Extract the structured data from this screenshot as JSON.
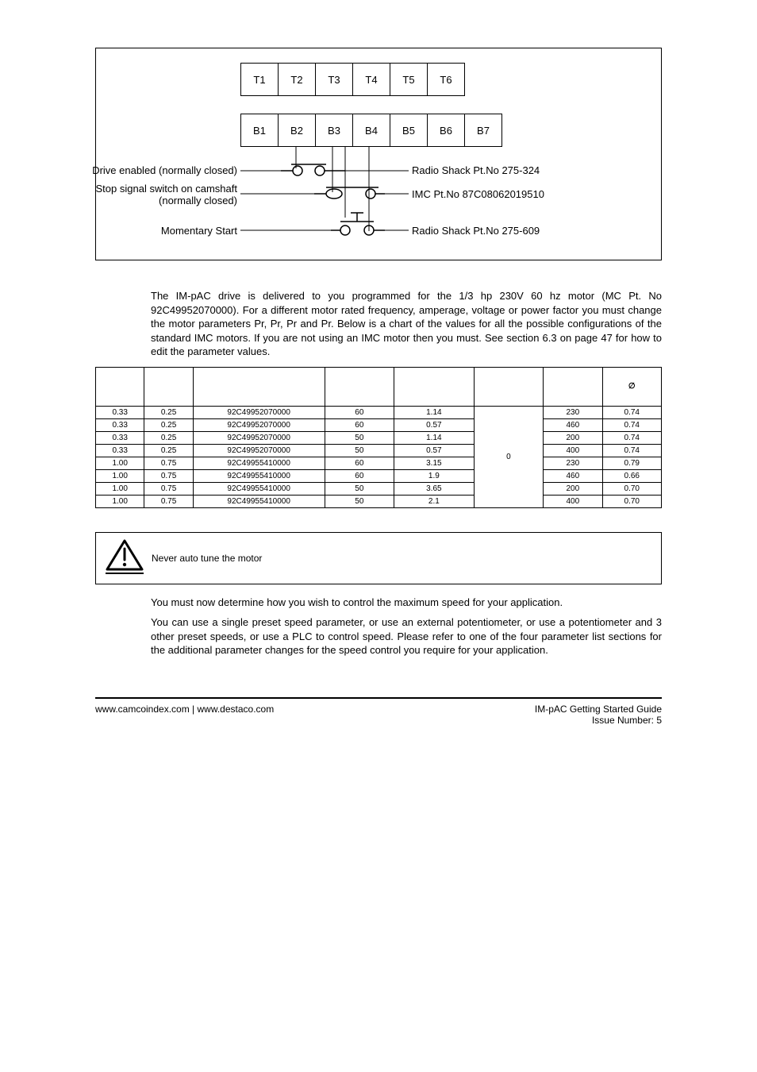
{
  "figure": {
    "top_terminals": [
      "T1",
      "T2",
      "T3",
      "T4",
      "T5",
      "T6"
    ],
    "bottom_terminals": [
      "B1",
      "B2",
      "B3",
      "B4",
      "B5",
      "B6",
      "B7"
    ],
    "left_labels": {
      "drive_enabled": "Drive enabled (normally closed)",
      "stop_signal_l1": "Stop signal switch on camshaft",
      "stop_signal_l2": "(normally closed)",
      "momentary": "Momentary Start"
    },
    "right_labels": {
      "radio1": "Radio Shack Pt.No 275-324",
      "imc": "IMC Pt.No 87C08062019510",
      "radio2": "Radio Shack Pt.No 275-609"
    }
  },
  "para1_a": "The IM-pAC drive is delivered to you programmed for the 1/3 hp 230V 60 hz motor (MC Pt. No 92C49952070000). For a different motor rated frequency, amperage, voltage or power factor you must change the motor parameters Pr",
  "para1_b": ", Pr",
  "para1_c": ", Pr",
  "para1_d": " and Pr",
  "para1_e": ". Below is a chart of the values for all the possible configurations of the standard IMC motors.  If you are not using an IMC motor then you must",
  "para1_f": ".  See section 6.3",
  "para1_g": " on page 47 for how to edit the parameter values.",
  "table": {
    "columns": [
      "",
      "",
      "",
      "",
      "",
      "",
      "",
      "∅"
    ],
    "rows": [
      [
        "0.33",
        "0.25",
        "92C49952070000",
        "60",
        "1.14",
        "230",
        "0.74"
      ],
      [
        "0.33",
        "0.25",
        "92C49952070000",
        "60",
        "0.57",
        "460",
        "0.74"
      ],
      [
        "0.33",
        "0.25",
        "92C49952070000",
        "50",
        "1.14",
        "200",
        "0.74"
      ],
      [
        "0.33",
        "0.25",
        "92C49952070000",
        "50",
        "0.57",
        "400",
        "0.74"
      ],
      [
        "1.00",
        "0.75",
        "92C49955410000",
        "60",
        "3.15",
        "230",
        "0.79"
      ],
      [
        "1.00",
        "0.75",
        "92C49955410000",
        "60",
        "1.9",
        "460",
        "0.66"
      ],
      [
        "1.00",
        "0.75",
        "92C49955410000",
        "50",
        "3.65",
        "200",
        "0.70"
      ],
      [
        "1.00",
        "0.75",
        "92C49955410000",
        "50",
        "2.1",
        "400",
        "0.70"
      ]
    ],
    "merged_val": "0"
  },
  "note_text": "Never auto tune the motor",
  "para2": "You must now determine how you wish to control the maximum speed for your application.",
  "para3": "You can use a single preset speed parameter, or use an external potentiometer, or use a potentiometer and 3 other preset speeds, or use a PLC to control speed.  Please refer to one of the four parameter list sections for the additional parameter changes for the speed control you require for your application.",
  "footer": {
    "left": "www.camcoindex.com | www.destaco.com",
    "right1": "IM-pAC Getting Started Guide",
    "right2": "Issue Number:  5"
  }
}
